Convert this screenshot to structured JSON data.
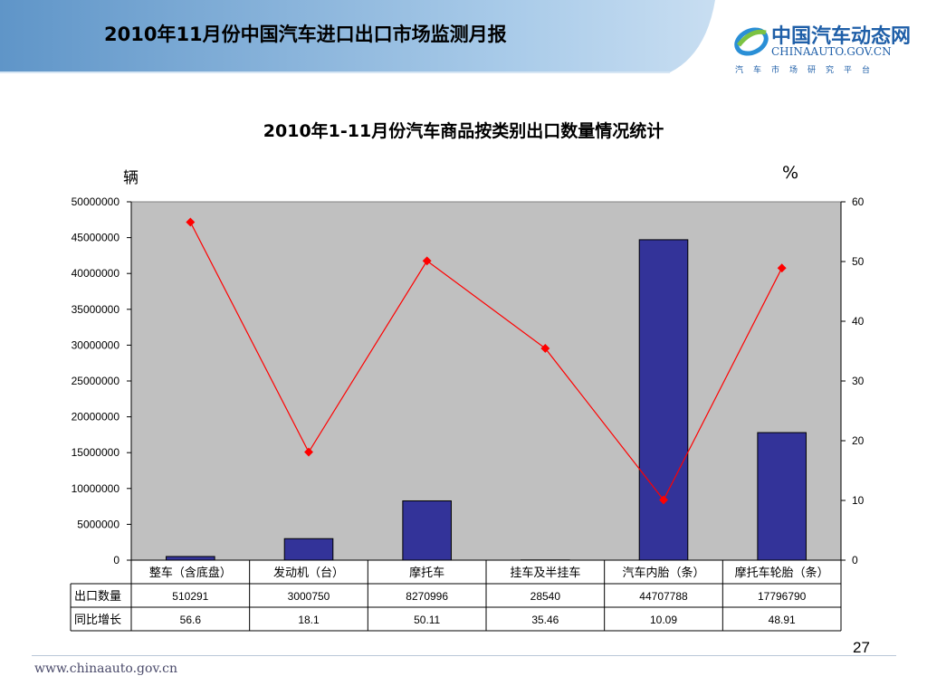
{
  "header": {
    "title": "2010年11月份中国汽车进口出口市场监测月报"
  },
  "logo": {
    "cn": "中国汽车动态网",
    "en": "CHINAAUTO.GOV.CN",
    "sub": "汽车市场研究平台"
  },
  "colors": {
    "header_band": "#9fc3e4",
    "bar": "#333399",
    "line": "#ff0000",
    "plot_bg": "#c0c0c0"
  },
  "chart_data": {
    "type": "bar",
    "title": "2010年1-11月份汽车商品按类别出口数量情况统计",
    "ylabel": "辆",
    "y2label": "%",
    "categories": [
      "整车（含底盘）",
      "发动机（台）",
      "摩托车",
      "挂车及半挂车",
      "汽车内胎（条）",
      "摩托车轮胎（条）"
    ],
    "series": [
      {
        "name": "出口数量",
        "type": "bar",
        "axis": "left",
        "values": [
          510291,
          3000750,
          8270996,
          28540,
          44707788,
          17796790
        ],
        "labels": [
          "510291",
          "3000750",
          "8270996",
          "28540",
          "44707788",
          "17796790"
        ]
      },
      {
        "name": "同比增长",
        "type": "line",
        "axis": "right",
        "values": [
          56.6,
          18.1,
          50.11,
          35.46,
          10.09,
          48.91
        ],
        "labels": [
          "56.6",
          "18.1",
          "50.11",
          "35.46",
          "10.09",
          "48.91"
        ]
      }
    ],
    "ylim": [
      0,
      50000000
    ],
    "yticks": [
      "50000000",
      "45000000",
      "40000000",
      "35000000",
      "30000000",
      "25000000",
      "20000000",
      "15000000",
      "10000000",
      "5000000",
      "0"
    ],
    "y2lim": [
      0,
      60
    ],
    "y2ticks": [
      "60",
      "50",
      "40",
      "30",
      "20",
      "10",
      "0"
    ],
    "grid": false,
    "legend": "data-table"
  },
  "footer": {
    "url": "www.chinaauto.gov.cn",
    "page_number": "27"
  }
}
